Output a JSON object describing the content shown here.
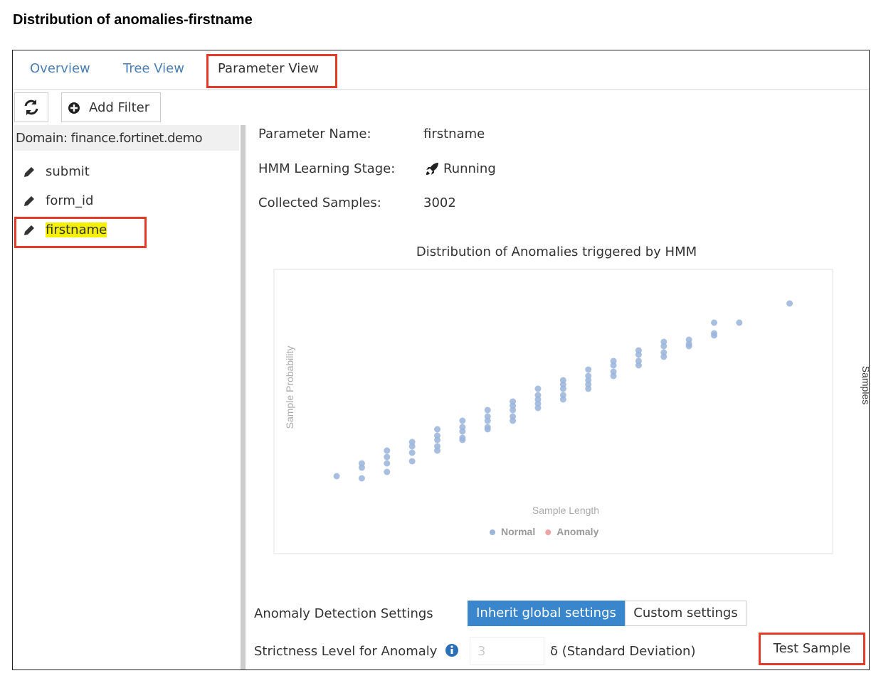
{
  "header": {
    "title": "Distribution of anomalies-firstname"
  },
  "tabs": [
    "Overview",
    "Tree View",
    "Parameter View"
  ],
  "toolbar": {
    "add_filter": "Add Filter"
  },
  "sidebar": {
    "domain": "Domain: finance.fortinet.demo",
    "parameters": [
      "submit",
      "form_id",
      "firstname"
    ]
  },
  "details": [
    {
      "label": "Parameter Name:",
      "value": "firstname"
    },
    {
      "label": "HMM Learning Stage:",
      "value": "Running"
    },
    {
      "label": "Collected Samples:",
      "value": "3002"
    }
  ],
  "chart_data": {
    "type": "scatter",
    "title": "Distribution of Anomalies triggered by HMM",
    "x_label": "Sample Length",
    "y_label": "Sample Probability",
    "y2_label": "Samples",
    "xlim": [
      -0.5,
      20
    ],
    "ylim": [
      0,
      1
    ],
    "series": [
      {
        "name": "Normal",
        "color": "#9ab4da",
        "x": [
          1,
          2,
          2,
          2,
          3,
          3,
          3,
          3,
          4,
          4,
          4,
          4,
          5,
          5,
          5,
          5,
          5,
          6,
          6,
          6,
          6,
          6,
          7,
          7,
          7,
          7,
          7,
          8,
          8,
          8,
          8,
          8,
          9,
          9,
          9,
          9,
          9,
          10,
          10,
          10,
          10,
          10,
          11,
          11,
          11,
          11,
          11,
          12,
          12,
          12,
          12,
          13,
          13,
          13,
          13,
          14,
          14,
          14,
          14,
          15,
          15,
          15,
          16,
          16,
          16,
          17,
          19
        ],
        "y": [
          0.1,
          0.16,
          0.14,
          0.09,
          0.22,
          0.19,
          0.16,
          0.12,
          0.26,
          0.24,
          0.21,
          0.17,
          0.32,
          0.29,
          0.27,
          0.24,
          0.22,
          0.36,
          0.33,
          0.31,
          0.28,
          0.27,
          0.41,
          0.38,
          0.36,
          0.33,
          0.32,
          0.45,
          0.43,
          0.41,
          0.38,
          0.36,
          0.51,
          0.48,
          0.46,
          0.44,
          0.42,
          0.55,
          0.53,
          0.51,
          0.48,
          0.46,
          0.6,
          0.57,
          0.55,
          0.53,
          0.51,
          0.64,
          0.62,
          0.59,
          0.57,
          0.69,
          0.67,
          0.64,
          0.62,
          0.73,
          0.71,
          0.68,
          0.66,
          0.74,
          0.72,
          0.71,
          0.82,
          0.77,
          0.76,
          0.82,
          0.91
        ]
      },
      {
        "name": "Anomaly",
        "color": "#f0a4a4",
        "x": [],
        "y": []
      }
    ]
  },
  "settings": {
    "label": "Anomaly Detection Settings",
    "options": [
      "Inherit global settings",
      "Custom settings"
    ],
    "strictness_label": "Strictness Level for Anomaly",
    "strictness_value": "3",
    "unit": "δ (Standard Deviation)",
    "test_button": "Test Sample"
  }
}
